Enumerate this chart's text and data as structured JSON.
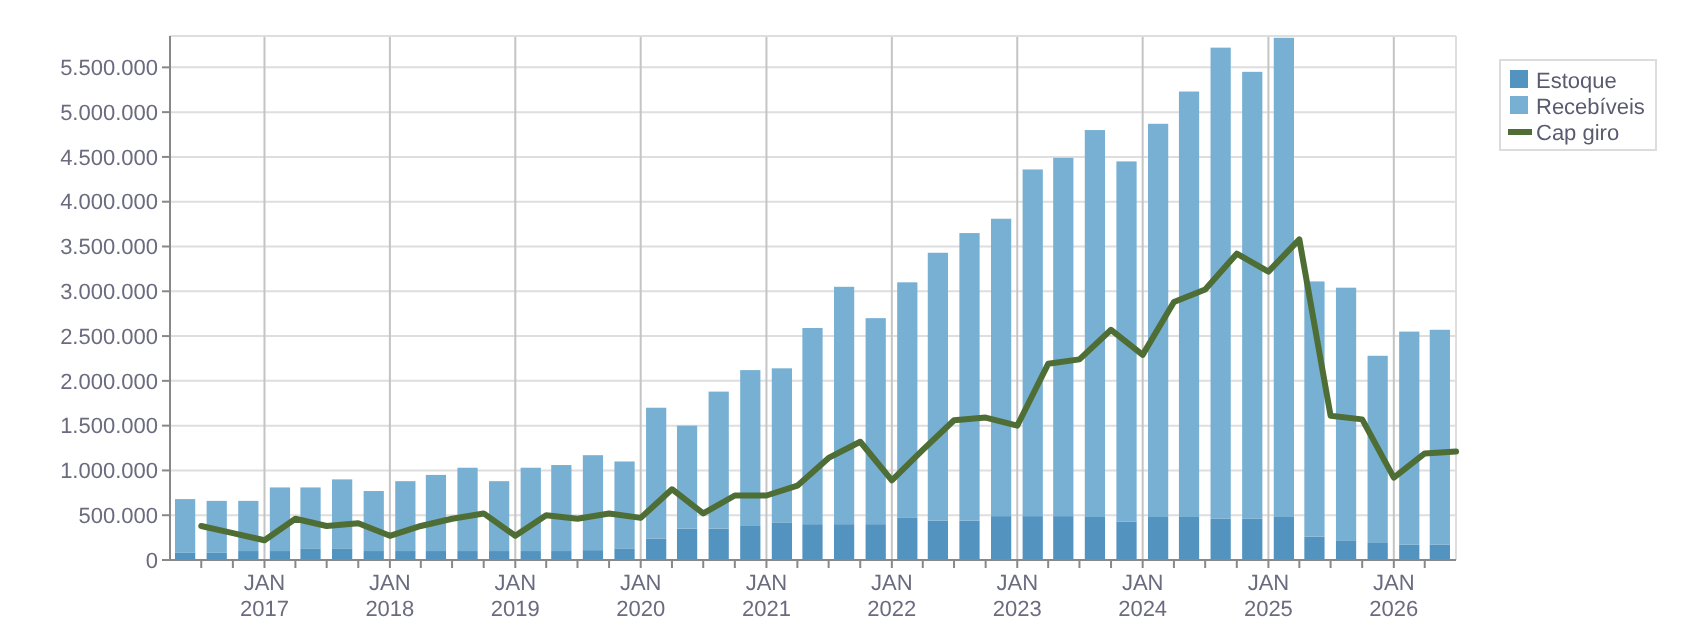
{
  "chart_data": {
    "type": "bar",
    "stacked": true,
    "grid": true,
    "legend": "top right",
    "xlim": [
      "2016-04",
      "2026-07"
    ],
    "ylim": [
      0,
      5850000
    ],
    "yticks": [
      0,
      {
        "value": 500000,
        "label": "500.000"
      },
      {
        "value": 1000000,
        "label": "1.000.000"
      },
      {
        "value": 1500000,
        "label": "1.500.000"
      },
      {
        "value": 2000000,
        "label": "2.000.000"
      },
      {
        "value": 2500000,
        "label": "2.500.000"
      },
      {
        "value": 3000000,
        "label": "3.000.000"
      },
      {
        "value": 3500000,
        "label": "3.500.000"
      },
      {
        "value": 4000000,
        "label": "4.000.000"
      },
      {
        "value": 4500000,
        "label": "4.500.000"
      },
      {
        "value": 5000000,
        "label": "5.000.000"
      },
      {
        "value": 5500000,
        "label": "5.500.000"
      }
    ],
    "xticks": [
      {
        "value": "2016-07",
        "label": null
      },
      {
        "value": "2016-10",
        "label": null
      },
      {
        "value": "2017-01",
        "label": "JAN\n2017"
      },
      {
        "value": "2017-04",
        "label": null
      },
      {
        "value": "2017-07",
        "label": null
      },
      {
        "value": "2017-10",
        "label": null
      },
      {
        "value": "2018-01",
        "label": "JAN\n2018"
      },
      {
        "value": "2018-04",
        "label": null
      },
      {
        "value": "2018-07",
        "label": null
      },
      {
        "value": "2018-10",
        "label": null
      },
      {
        "value": "2019-01",
        "label": "JAN\n2019"
      },
      {
        "value": "2019-04",
        "label": null
      },
      {
        "value": "2019-07",
        "label": null
      },
      {
        "value": "2019-10",
        "label": null
      },
      {
        "value": "2020-01",
        "label": "JAN\n2020"
      },
      {
        "value": "2020-04",
        "label": null
      },
      {
        "value": "2020-07",
        "label": null
      },
      {
        "value": "2020-10",
        "label": null
      },
      {
        "value": "2021-01",
        "label": "JAN\n2021"
      },
      {
        "value": "2021-04",
        "label": null
      },
      {
        "value": "2021-07",
        "label": null
      },
      {
        "value": "2021-10",
        "label": null
      },
      {
        "value": "2022-01",
        "label": "JAN\n2022"
      },
      {
        "value": "2022-04",
        "label": null
      },
      {
        "value": "2022-07",
        "label": null
      },
      {
        "value": "2022-10",
        "label": null
      },
      {
        "value": "2023-01",
        "label": "JAN\n2023"
      },
      {
        "value": "2023-04",
        "label": null
      },
      {
        "value": "2023-07",
        "label": null
      },
      {
        "value": "2023-10",
        "label": null
      },
      {
        "value": "2024-01",
        "label": "JAN\n2024"
      },
      {
        "value": "2024-04",
        "label": null
      },
      {
        "value": "2024-07",
        "label": null
      },
      {
        "value": "2024-10",
        "label": null
      },
      {
        "value": "2025-01",
        "label": "JAN\n2025"
      },
      {
        "value": "2025-04",
        "label": null
      },
      {
        "value": "2025-07",
        "label": null
      },
      {
        "value": "2025-10",
        "label": null
      },
      {
        "value": "2026-01",
        "label": "JAN\n2026"
      },
      {
        "value": "2026-04",
        "label": null
      }
    ],
    "series": [
      {
        "name": "Estoque",
        "color": "#5393c0",
        "x": [
          "2016-05-15",
          "2016-08-15",
          "2016-11-15",
          "2017-02-15",
          "2017-05-15",
          "2017-08-15",
          "2017-11-15",
          "2018-02-15",
          "2018-05-15",
          "2018-08-15",
          "2018-11-15",
          "2019-02-15",
          "2019-05-15",
          "2019-08-15",
          "2019-11-15",
          "2020-02-15",
          "2020-05-15",
          "2020-08-15",
          "2020-11-15",
          "2021-02-15",
          "2021-05-15",
          "2021-08-15",
          "2021-11-15",
          "2022-02-15",
          "2022-05-15",
          "2022-08-15",
          "2022-11-15",
          "2023-02-15",
          "2023-05-15",
          "2023-08-15",
          "2023-11-15",
          "2024-02-15",
          "2024-05-15",
          "2024-08-15",
          "2024-11-15",
          "2025-02-15",
          "2025-05-15",
          "2025-08-15",
          "2025-11-15",
          "2026-02-15",
          "2026-05-15"
        ],
        "values": [
          80000,
          80000,
          100000,
          100000,
          130000,
          130000,
          100000,
          100000,
          100000,
          100000,
          100000,
          100000,
          100000,
          110000,
          130000,
          240000,
          350000,
          350000,
          380000,
          420000,
          400000,
          400000,
          400000,
          470000,
          440000,
          440000,
          490000,
          490000,
          490000,
          480000,
          430000,
          480000,
          480000,
          460000,
          460000,
          480000,
          260000,
          220000,
          190000,
          170000,
          170000
        ]
      },
      {
        "name": "Recebíveis",
        "color": "#77b0d3",
        "x": [
          "2016-05-15",
          "2016-08-15",
          "2016-11-15",
          "2017-02-15",
          "2017-05-15",
          "2017-08-15",
          "2017-11-15",
          "2018-02-15",
          "2018-05-15",
          "2018-08-15",
          "2018-11-15",
          "2019-02-15",
          "2019-05-15",
          "2019-08-15",
          "2019-11-15",
          "2020-02-15",
          "2020-05-15",
          "2020-08-15",
          "2020-11-15",
          "2021-02-15",
          "2021-05-15",
          "2021-08-15",
          "2021-11-15",
          "2022-02-15",
          "2022-05-15",
          "2022-08-15",
          "2022-11-15",
          "2023-02-15",
          "2023-05-15",
          "2023-08-15",
          "2023-11-15",
          "2024-02-15",
          "2024-05-15",
          "2024-08-15",
          "2024-11-15",
          "2025-02-15",
          "2025-05-15",
          "2025-08-15",
          "2025-11-15",
          "2026-02-15",
          "2026-05-15"
        ],
        "values": [
          600000,
          580000,
          560000,
          710000,
          680000,
          770000,
          670000,
          780000,
          850000,
          930000,
          780000,
          930000,
          960000,
          1060000,
          970000,
          1460000,
          1150000,
          1530000,
          1740000,
          1720000,
          2190000,
          2650000,
          2300000,
          2630000,
          2990000,
          3210000,
          3320000,
          3870000,
          4000000,
          4320000,
          4020000,
          4390000,
          4750000,
          5260000,
          4990000,
          5350000,
          2850000,
          2820000,
          2090000,
          2380000,
          2400000
        ]
      },
      {
        "name": "Cap giro",
        "type": "line",
        "color": "#4e6e35",
        "line_style": "solid",
        "x": [
          "2016-07",
          "2016-10",
          "2017-01",
          "2017-04",
          "2017-07",
          "2017-10",
          "2018-01",
          "2018-04",
          "2018-07",
          "2018-10",
          "2019-01",
          "2019-04",
          "2019-07",
          "2019-10",
          "2020-01",
          "2020-04",
          "2020-07",
          "2020-10",
          "2021-01",
          "2021-04",
          "2021-07",
          "2021-10",
          "2022-01",
          "2022-04",
          "2022-07",
          "2022-10",
          "2023-01",
          "2023-04",
          "2023-07",
          "2023-10",
          "2024-01",
          "2024-04",
          "2024-07",
          "2024-10",
          "2025-01",
          "2025-04",
          "2025-07",
          "2025-10",
          "2026-01",
          "2026-04",
          "2026-07"
        ],
        "values": [
          380000,
          300000,
          220000,
          460000,
          380000,
          410000,
          270000,
          380000,
          460000,
          520000,
          270000,
          500000,
          460000,
          520000,
          470000,
          790000,
          520000,
          720000,
          720000,
          830000,
          1140000,
          1320000,
          890000,
          1230000,
          1560000,
          1590000,
          1500000,
          2190000,
          2240000,
          2570000,
          2290000,
          2880000,
          3020000,
          3420000,
          3220000,
          3580000,
          1610000,
          1570000,
          920000,
          1190000,
          1210000
        ]
      }
    ]
  }
}
